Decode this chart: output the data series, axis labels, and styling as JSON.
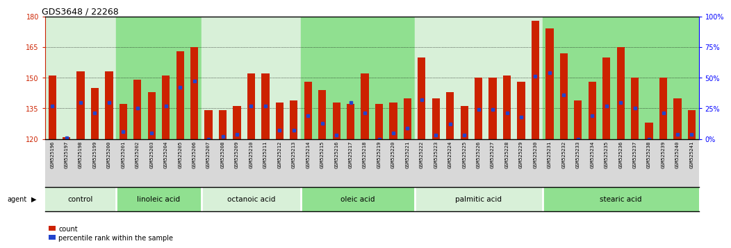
{
  "title": "GDS3648 / 22268",
  "samples": [
    "GSM525196",
    "GSM525197",
    "GSM525198",
    "GSM525199",
    "GSM525200",
    "GSM525201",
    "GSM525202",
    "GSM525203",
    "GSM525204",
    "GSM525205",
    "GSM525206",
    "GSM525207",
    "GSM525208",
    "GSM525209",
    "GSM525210",
    "GSM525211",
    "GSM525212",
    "GSM525213",
    "GSM525214",
    "GSM525215",
    "GSM525216",
    "GSM525217",
    "GSM525218",
    "GSM525219",
    "GSM525220",
    "GSM525221",
    "GSM525222",
    "GSM525223",
    "GSM525224",
    "GSM525225",
    "GSM525226",
    "GSM525227",
    "GSM525228",
    "GSM525229",
    "GSM525230",
    "GSM525231",
    "GSM525232",
    "GSM525233",
    "GSM525234",
    "GSM525235",
    "GSM525236",
    "GSM525237",
    "GSM525238",
    "GSM525239",
    "GSM525240",
    "GSM525241"
  ],
  "counts": [
    151,
    121,
    153,
    145,
    153,
    137,
    149,
    143,
    151,
    163,
    165,
    134,
    134,
    136,
    152,
    152,
    138,
    139,
    148,
    144,
    138,
    137,
    152,
    137,
    138,
    140,
    160,
    140,
    143,
    136,
    150,
    150,
    151,
    148,
    178,
    174,
    162,
    139,
    148,
    160,
    165,
    150,
    128,
    150,
    140,
    134
  ],
  "percentile_ranks_pct": [
    27,
    1,
    30,
    21,
    30,
    6,
    25,
    5,
    27,
    42,
    47,
    0,
    2,
    4,
    27,
    27,
    7,
    7,
    19,
    13,
    3,
    30,
    21,
    0,
    5,
    9,
    32,
    3,
    12,
    3,
    24,
    24,
    21,
    18,
    51,
    54,
    36,
    0,
    19,
    27,
    30,
    25,
    0,
    21,
    4,
    4
  ],
  "groups": [
    {
      "label": "control",
      "start": 0,
      "end": 5,
      "color": "#d8f0d8"
    },
    {
      "label": "linoleic acid",
      "start": 5,
      "end": 11,
      "color": "#90e090"
    },
    {
      "label": "octanoic acid",
      "start": 11,
      "end": 18,
      "color": "#d8f0d8"
    },
    {
      "label": "oleic acid",
      "start": 18,
      "end": 26,
      "color": "#90e090"
    },
    {
      "label": "palmitic acid",
      "start": 26,
      "end": 35,
      "color": "#d8f0d8"
    },
    {
      "label": "stearic acid",
      "start": 35,
      "end": 46,
      "color": "#90e090"
    }
  ],
  "ymin": 120,
  "ymax": 180,
  "y_ticks_left": [
    120,
    135,
    150,
    165,
    180
  ],
  "y_right_ticks_pct": [
    0,
    25,
    50,
    75,
    100
  ],
  "bar_color": "#cc2200",
  "dot_color": "#2244cc",
  "plot_bg": "#ffffff",
  "xtick_bg": "#d8d8d8",
  "title_fontsize": 9,
  "bar_width": 0.55
}
